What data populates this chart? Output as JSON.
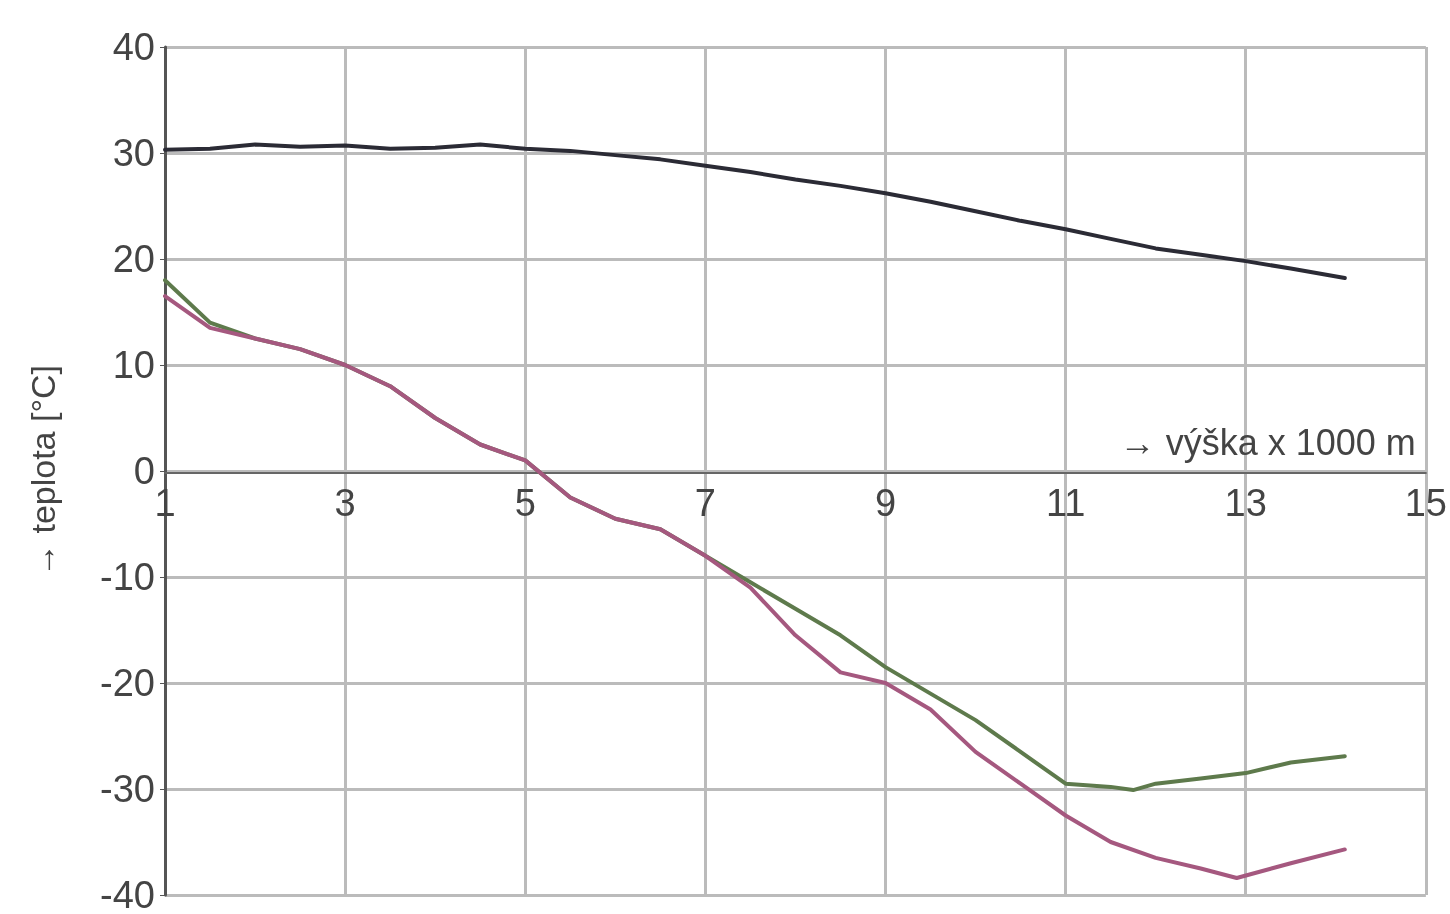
{
  "chart_data": {
    "type": "line",
    "xlabel": "→ výška x 1000 m",
    "ylabel": "→ teplota [°C]",
    "xlim": [
      1,
      15
    ],
    "xticks": [
      1,
      3,
      5,
      7,
      9,
      11,
      13,
      15
    ],
    "ylim": [
      -40,
      40
    ],
    "yticks": [
      -40,
      -30,
      -20,
      -10,
      0,
      10,
      20,
      30,
      40
    ],
    "grid": true,
    "marker": "none",
    "line_style": "solid",
    "series": [
      {
        "color": "#2b2b35",
        "x": [
          1,
          1.5,
          2,
          2.5,
          3,
          3.5,
          4,
          4.5,
          5,
          5.5,
          6,
          6.5,
          7,
          7.5,
          8,
          8.5,
          9,
          9.5,
          10,
          10.5,
          11,
          11.5,
          12,
          12.5,
          13,
          13.5,
          14.1
        ],
        "values": [
          30.3,
          30.4,
          30.8,
          30.6,
          30.7,
          30.4,
          30.5,
          30.8,
          30.4,
          30.2,
          29.8,
          29.4,
          28.8,
          28.2,
          27.5,
          26.9,
          26.2,
          25.4,
          24.5,
          23.6,
          22.8,
          21.9,
          21,
          20.4,
          19.8,
          19.1,
          18.2
        ]
      },
      {
        "color": "#5e7a4c",
        "x": [
          1,
          1.5,
          2,
          2.5,
          3,
          3.5,
          4,
          4.5,
          5,
          5.5,
          6,
          6.5,
          7,
          7.5,
          8,
          8.5,
          9,
          9.5,
          10,
          10.5,
          11,
          11.5,
          11.75,
          12,
          12.5,
          13,
          13.5,
          14.1
        ],
        "values": [
          18,
          14,
          12.5,
          11.5,
          10,
          8,
          5,
          2.5,
          1,
          -2.5,
          -4.5,
          -5.5,
          -8,
          -10.5,
          -13,
          -15.5,
          -18.5,
          -21,
          -23.5,
          -26.5,
          -29.5,
          -29.8,
          -30.1,
          -29.5,
          -29,
          -28.5,
          -27.5,
          -26.9
        ]
      },
      {
        "color": "#a5587f",
        "x": [
          1,
          1.5,
          2,
          2.5,
          3,
          3.5,
          4,
          4.5,
          5,
          5.5,
          6,
          6.5,
          7,
          7.5,
          8,
          8.5,
          9,
          9.5,
          10,
          10.5,
          11,
          11.5,
          12,
          12.5,
          12.9,
          13.5,
          14.1
        ],
        "values": [
          16.5,
          13.5,
          12.5,
          11.5,
          10,
          8,
          5,
          2.5,
          1,
          -2.5,
          -4.5,
          -5.5,
          -8,
          -11,
          -15.5,
          -19,
          -20,
          -22.5,
          -26.5,
          -29.5,
          -32.5,
          -35,
          -36.5,
          -37.5,
          -38.4,
          -37,
          -35.7
        ]
      }
    ]
  }
}
